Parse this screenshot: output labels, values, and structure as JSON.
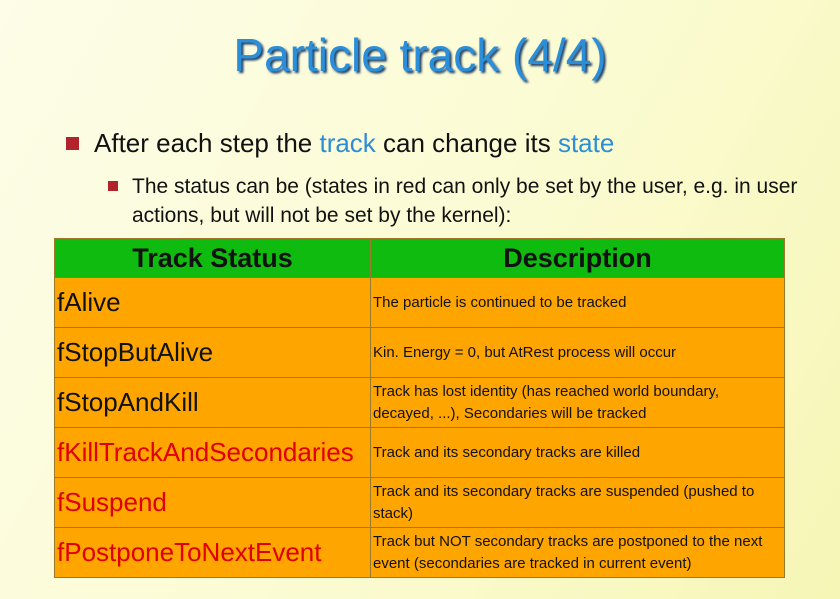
{
  "slide": {
    "title": "Particle track (4/4)",
    "bullet1": {
      "prefix": "After each step the ",
      "highlight1": "track",
      "middle": " can change its ",
      "highlight2": "state"
    },
    "bullet2": "The status can be (states in red can only be set by the user, e.g. in user actions, but will not be set by the kernel):"
  },
  "table": {
    "headers": [
      "Track Status",
      "Description"
    ],
    "rows": [
      {
        "status": "fAlive",
        "description": "The particle is continued to be tracked"
      },
      {
        "status": "fStopButAlive",
        "description": "Kin. Energy = 0, but AtRest process will occur"
      },
      {
        "status": "fStopAndKill",
        "description": "Track has lost identity (has reached world boundary, decayed, ...), Secondaries will be tracked"
      },
      {
        "status": "fKillTrackAndSecondaries",
        "description": "Track and its secondary tracks are killed"
      },
      {
        "status": "fSuspend",
        "description": "Track and its secondary tracks are suspended (pushed to stack)"
      },
      {
        "status": "fPostponeToNextEvent",
        "description": "Track but NOT secondary tracks are postponed to the next event (secondaries are tracked in current event)"
      }
    ]
  },
  "colors": {
    "title": "#2a8fd8",
    "highlight": "#2a8fd8",
    "bullet": "#b1242b",
    "header_bg": "#10bb10",
    "row_bg": "#ffa500",
    "user_only_status": "#e00000"
  }
}
